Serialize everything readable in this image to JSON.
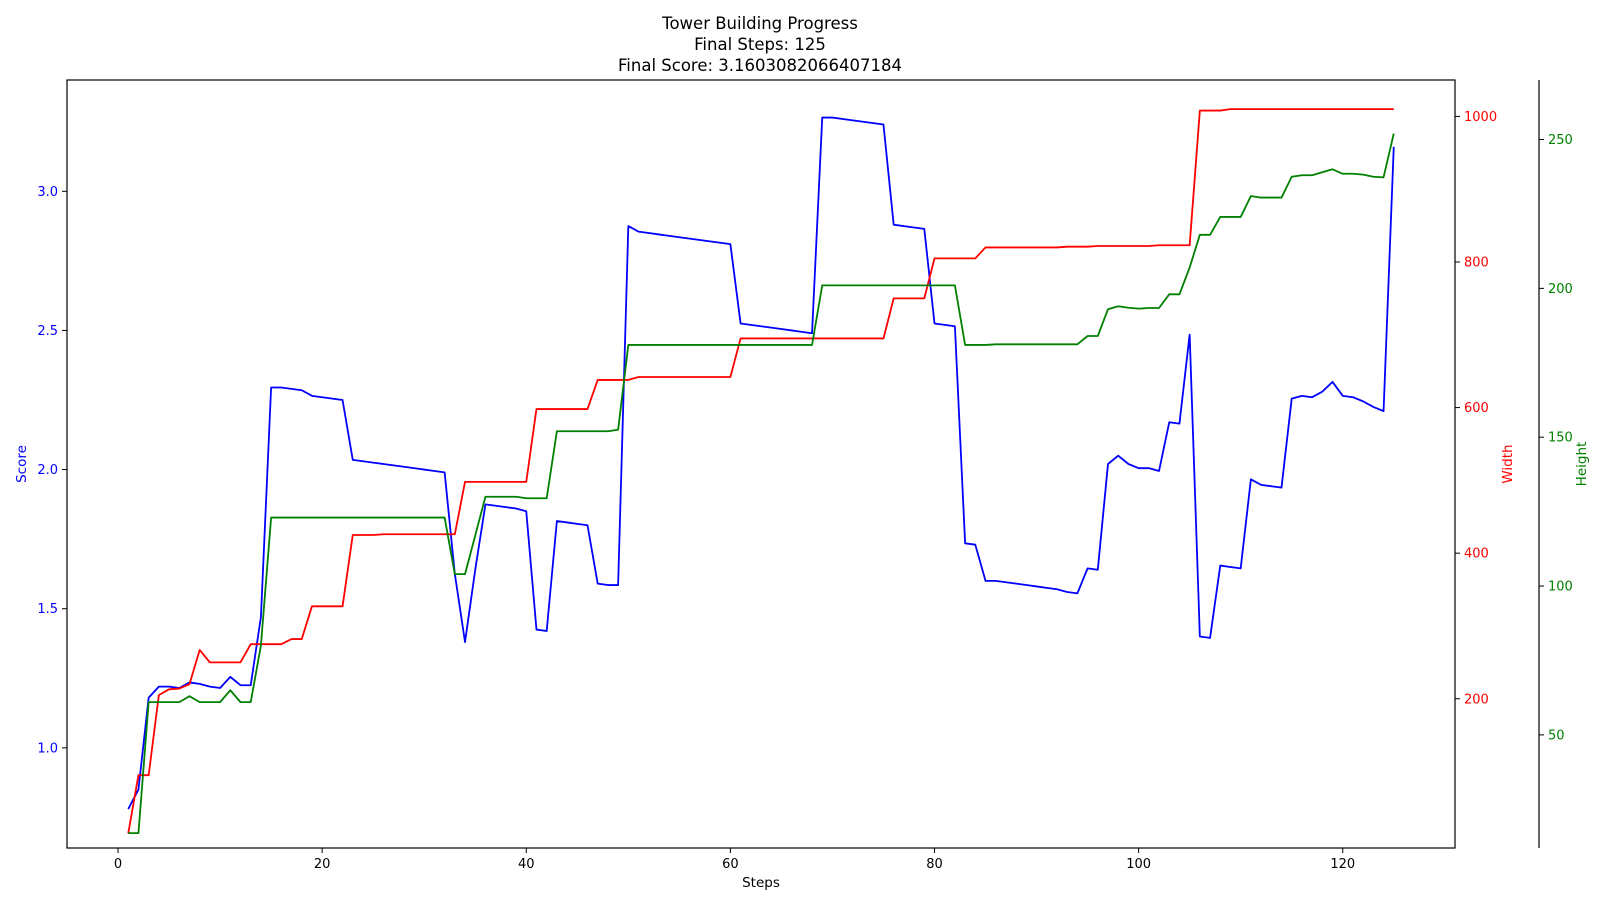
{
  "chart_data": {
    "type": "line",
    "title": [
      "Tower Building Progress",
      "Final Steps: 125",
      "Final Score: 3.1603082066407184"
    ],
    "xlabel": "Steps",
    "xlim": [
      -5,
      131
    ],
    "xticks": [
      0,
      20,
      40,
      60,
      80,
      100,
      120
    ],
    "grid": false,
    "axes": [
      {
        "id": "score",
        "label": "Score",
        "color": "#0000ff",
        "side": "left",
        "ylim": [
          0.64,
          3.4
        ],
        "ticks": [
          1.0,
          1.5,
          2.0,
          2.5,
          3.0
        ],
        "tick_labels": [
          "1.0",
          "1.5",
          "2.0",
          "2.5",
          "3.0"
        ]
      },
      {
        "id": "width",
        "label": "Width",
        "color": "#ff0000",
        "side": "right",
        "ylim": [
          -5,
          1050
        ],
        "ticks": [
          200,
          400,
          600,
          800,
          1000
        ],
        "tick_labels": [
          "200",
          "400",
          "600",
          "800",
          "1000"
        ]
      },
      {
        "id": "height",
        "label": "Height",
        "color": "#008000",
        "side": "right-outer",
        "ylim": [
          12,
          270
        ],
        "ticks": [
          50,
          100,
          150,
          200,
          250
        ],
        "tick_labels": [
          "50",
          "100",
          "150",
          "200",
          "250"
        ]
      }
    ],
    "series": [
      {
        "axis": "score",
        "color": "#0000ff",
        "x": [
          1,
          2,
          3,
          4,
          5,
          6,
          7,
          8,
          9,
          10,
          11,
          12,
          13,
          14,
          15,
          16,
          17,
          18,
          19,
          20,
          21,
          22,
          23,
          24,
          25,
          26,
          27,
          28,
          29,
          30,
          31,
          32,
          33,
          34,
          35,
          36,
          37,
          38,
          39,
          40,
          41,
          42,
          43,
          44,
          45,
          46,
          47,
          48,
          49,
          50,
          51,
          52,
          53,
          54,
          55,
          56,
          57,
          58,
          59,
          60,
          61,
          62,
          63,
          64,
          65,
          66,
          67,
          68,
          69,
          70,
          71,
          72,
          73,
          74,
          75,
          76,
          77,
          78,
          79,
          80,
          81,
          82,
          83,
          84,
          85,
          86,
          87,
          88,
          89,
          90,
          91,
          92,
          93,
          94,
          95,
          96,
          97,
          98,
          99,
          100,
          101,
          102,
          103,
          104,
          105,
          106,
          107,
          108,
          109,
          110,
          111,
          112,
          113,
          114,
          115,
          116,
          117,
          118,
          119,
          120,
          121,
          122,
          123,
          124,
          125
        ],
        "values": [
          0.78,
          0.85,
          1.18,
          1.22,
          1.22,
          1.215,
          1.235,
          1.23,
          1.22,
          1.215,
          1.255,
          1.225,
          1.225,
          1.47,
          2.295,
          2.295,
          2.29,
          2.285,
          2.265,
          2.26,
          2.255,
          2.25,
          2.035,
          2.03,
          2.025,
          2.02,
          2.015,
          2.01,
          2.005,
          2.0,
          1.995,
          1.99,
          1.625,
          1.38,
          1.64,
          1.875,
          1.87,
          1.865,
          1.86,
          1.85,
          1.425,
          1.42,
          1.815,
          1.81,
          1.805,
          1.8,
          1.59,
          1.585,
          1.585,
          2.875,
          2.855,
          2.85,
          2.845,
          2.84,
          2.835,
          2.83,
          2.825,
          2.82,
          2.815,
          2.81,
          2.525,
          2.52,
          2.515,
          2.51,
          2.505,
          2.5,
          2.495,
          2.49,
          3.265,
          3.265,
          3.26,
          3.255,
          3.25,
          3.245,
          3.24,
          2.88,
          2.875,
          2.87,
          2.865,
          2.525,
          2.52,
          2.515,
          1.735,
          1.73,
          1.6,
          1.6,
          1.595,
          1.59,
          1.585,
          1.58,
          1.575,
          1.57,
          1.56,
          1.555,
          1.645,
          1.64,
          2.02,
          2.05,
          2.02,
          2.005,
          2.005,
          1.995,
          2.17,
          2.165,
          2.485,
          1.4,
          1.395,
          1.655,
          1.65,
          1.645,
          1.965,
          1.945,
          1.94,
          1.935,
          2.255,
          2.265,
          2.26,
          2.28,
          2.315,
          2.265,
          2.26,
          2.245,
          2.225,
          2.21,
          3.16
        ]
      },
      {
        "axis": "width",
        "color": "#ff0000",
        "x": [
          1,
          2,
          3,
          4,
          5,
          6,
          7,
          8,
          9,
          10,
          11,
          12,
          13,
          14,
          15,
          16,
          17,
          18,
          19,
          20,
          21,
          22,
          23,
          24,
          25,
          26,
          27,
          28,
          29,
          30,
          31,
          32,
          33,
          34,
          35,
          36,
          37,
          38,
          39,
          40,
          41,
          42,
          43,
          44,
          45,
          46,
          47,
          48,
          49,
          50,
          51,
          52,
          53,
          54,
          55,
          56,
          57,
          58,
          59,
          60,
          61,
          62,
          63,
          64,
          65,
          66,
          67,
          68,
          69,
          70,
          71,
          72,
          73,
          74,
          75,
          76,
          77,
          78,
          79,
          80,
          81,
          82,
          83,
          84,
          85,
          86,
          87,
          88,
          89,
          90,
          91,
          92,
          93,
          94,
          95,
          96,
          97,
          98,
          99,
          100,
          101,
          102,
          103,
          104,
          105,
          106,
          107,
          108,
          109,
          110,
          111,
          112,
          113,
          114,
          115,
          116,
          117,
          118,
          119,
          120,
          121,
          122,
          123,
          124,
          125
        ],
        "values": [
          15,
          95,
          95,
          205,
          213,
          214,
          220,
          267,
          250,
          250,
          250,
          250,
          275,
          275,
          275,
          275,
          282,
          282,
          327,
          327,
          327,
          327,
          425,
          425,
          425,
          426,
          426,
          426,
          426,
          426,
          426,
          426,
          426,
          498,
          498,
          498,
          498,
          498,
          498,
          498,
          598,
          598,
          598,
          598,
          598,
          598,
          638,
          638,
          638,
          638,
          642,
          642,
          642,
          642,
          642,
          642,
          642,
          642,
          642,
          642,
          695,
          695,
          695,
          695,
          695,
          695,
          695,
          695,
          695,
          695,
          695,
          695,
          695,
          695,
          695,
          750,
          750,
          750,
          750,
          805,
          805,
          805,
          805,
          805,
          820,
          820,
          820,
          820,
          820,
          820,
          820,
          820,
          821,
          821,
          821,
          822,
          822,
          822,
          822,
          822,
          822,
          823,
          823,
          823,
          823,
          1008,
          1008,
          1008,
          1010,
          1010,
          1010,
          1010,
          1010,
          1010,
          1010,
          1010,
          1010,
          1010,
          1010,
          1010,
          1010,
          1010,
          1010,
          1010,
          1010
        ]
      },
      {
        "axis": "height",
        "color": "#008000",
        "x": [
          1,
          2,
          3,
          4,
          5,
          6,
          7,
          8,
          9,
          10,
          11,
          12,
          13,
          14,
          15,
          16,
          17,
          18,
          19,
          20,
          21,
          22,
          23,
          24,
          25,
          26,
          27,
          28,
          29,
          30,
          31,
          32,
          33,
          34,
          35,
          36,
          37,
          38,
          39,
          40,
          41,
          42,
          43,
          44,
          45,
          46,
          47,
          48,
          49,
          50,
          51,
          52,
          53,
          54,
          55,
          56,
          57,
          58,
          59,
          60,
          61,
          62,
          63,
          64,
          65,
          66,
          67,
          68,
          69,
          70,
          71,
          72,
          73,
          74,
          75,
          76,
          77,
          78,
          79,
          80,
          81,
          82,
          83,
          84,
          85,
          86,
          87,
          88,
          89,
          90,
          91,
          92,
          93,
          94,
          95,
          96,
          97,
          98,
          99,
          100,
          101,
          102,
          103,
          104,
          105,
          106,
          107,
          108,
          109,
          110,
          111,
          112,
          113,
          114,
          115,
          116,
          117,
          118,
          119,
          120,
          121,
          122,
          123,
          124,
          125
        ],
        "values": [
          17,
          17,
          61,
          61,
          61,
          61,
          63,
          61,
          61,
          61,
          65,
          61,
          61,
          80,
          123,
          123,
          123,
          123,
          123,
          123,
          123,
          123,
          123,
          123,
          123,
          123,
          123,
          123,
          123,
          123,
          123,
          123,
          104,
          104,
          117,
          130,
          130,
          130,
          130,
          129.5,
          129.5,
          129.5,
          152,
          152,
          152,
          152,
          152,
          152,
          152.5,
          181,
          181,
          181,
          181,
          181,
          181,
          181,
          181,
          181,
          181,
          181,
          181,
          181,
          181,
          181,
          181,
          181,
          181,
          181,
          201,
          201,
          201,
          201,
          201,
          201,
          201,
          201,
          201,
          201,
          201,
          201,
          201,
          201,
          181,
          181,
          181,
          181.2,
          181.2,
          181.2,
          181.2,
          181.2,
          181.2,
          181.2,
          181.2,
          181.2,
          184,
          184,
          193,
          194,
          193.5,
          193.2,
          193.4,
          193.4,
          198,
          198,
          207,
          218,
          218,
          224,
          224,
          224,
          231,
          230.5,
          230.5,
          230.5,
          237.5,
          238,
          238,
          239,
          240,
          238.5,
          238.5,
          238.2,
          237.5,
          237.3,
          252
        ]
      }
    ]
  }
}
